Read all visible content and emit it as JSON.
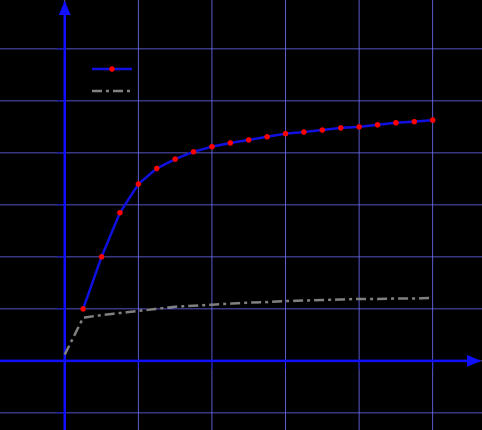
{
  "chart_data": {
    "type": "line",
    "x": [
      0,
      0.25,
      0.5,
      0.75,
      1,
      1.25,
      1.5,
      1.75,
      2,
      2.25,
      2.5,
      2.75,
      3,
      3.25,
      3.5,
      3.75,
      4,
      4.25,
      4.5,
      4.75,
      5
    ],
    "series": [
      {
        "color": "#1010e0",
        "marker_color": "#ff0000",
        "style": "solid",
        "values": [
          null,
          1.0,
          2.0,
          2.85,
          3.4,
          3.7,
          3.88,
          4.02,
          4.12,
          4.19,
          4.25,
          4.31,
          4.37,
          4.4,
          4.44,
          4.48,
          4.5,
          4.54,
          4.58,
          4.6,
          4.63
        ]
      },
      {
        "color": "#808080",
        "style": "dashdot",
        "values": [
          0.12,
          0.83,
          0.88,
          0.92,
          0.96,
          1.0,
          1.04,
          1.06,
          1.08,
          1.1,
          1.12,
          1.13,
          1.15,
          1.16,
          1.17,
          1.18,
          1.19,
          1.19,
          1.2,
          1.2,
          1.21
        ]
      }
    ],
    "xlim": [
      -0.88,
      5.67
    ],
    "ylim": [
      -1.33,
      6.94
    ],
    "xticks": [
      0,
      1,
      2,
      3,
      4,
      5
    ],
    "yticks": [
      -1,
      0,
      1,
      2,
      3,
      4,
      5,
      6
    ],
    "grid": true,
    "legend": "upper left"
  }
}
